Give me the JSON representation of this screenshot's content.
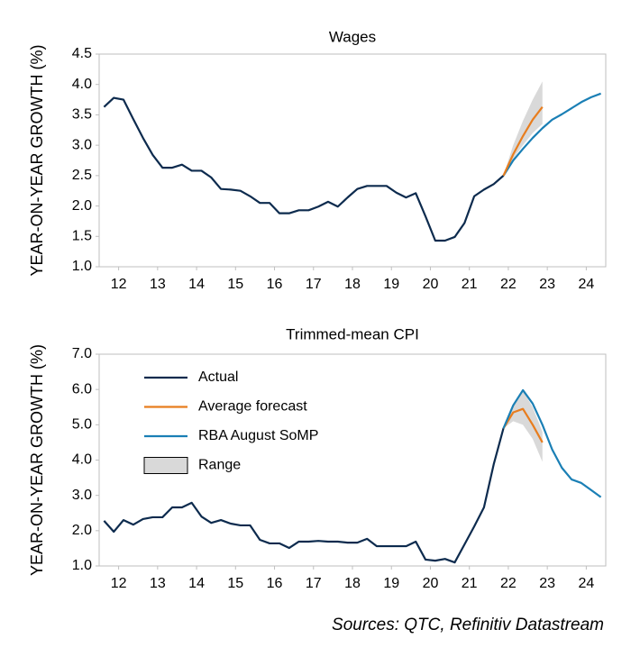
{
  "chart_data": [
    {
      "type": "line",
      "title": "Wages",
      "ylabel": "YEAR-ON-YEAR GROWTH (%)",
      "xlim": [
        2011.5,
        2024.5
      ],
      "xticks": [
        {
          "value": 2012,
          "label": "12"
        },
        {
          "value": 2013,
          "label": "13"
        },
        {
          "value": 2014,
          "label": "14"
        },
        {
          "value": 2015,
          "label": "15"
        },
        {
          "value": 2016,
          "label": "16"
        },
        {
          "value": 2017,
          "label": "17"
        },
        {
          "value": 2018,
          "label": "18"
        },
        {
          "value": 2019,
          "label": "19"
        },
        {
          "value": 2020,
          "label": "20"
        },
        {
          "value": 2021,
          "label": "21"
        },
        {
          "value": 2022,
          "label": "22"
        },
        {
          "value": 2023,
          "label": "23"
        },
        {
          "value": 2024,
          "label": "24"
        }
      ],
      "ylim": [
        1.0,
        4.5
      ],
      "yticks": [
        {
          "value": 1.0,
          "label": "1.0"
        },
        1.5,
        {
          "value": 2.0,
          "label": "2.0"
        },
        2.5,
        {
          "value": 3.0,
          "label": "3.0"
        },
        3.5,
        {
          "value": 4.0,
          "label": "4.0"
        },
        4.5
      ],
      "legend": false,
      "range": {
        "color": "#d9d9d9",
        "x": [
          2021.875,
          2022.125,
          2022.375,
          2022.625,
          2022.875
        ],
        "low": [
          2.5,
          2.78,
          3.0,
          3.2,
          3.35
        ],
        "high": [
          2.5,
          3.0,
          3.4,
          3.75,
          4.05
        ]
      },
      "series": [
        {
          "color": "#0d2b4e",
          "x": [
            2011.625,
            2011.875,
            2012.125,
            2012.375,
            2012.625,
            2012.875,
            2013.125,
            2013.375,
            2013.625,
            2013.875,
            2014.125,
            2014.375,
            2014.625,
            2014.875,
            2015.125,
            2015.375,
            2015.625,
            2015.875,
            2016.125,
            2016.375,
            2016.625,
            2016.875,
            2017.125,
            2017.375,
            2017.625,
            2017.875,
            2018.125,
            2018.375,
            2018.625,
            2018.875,
            2019.125,
            2019.375,
            2019.625,
            2019.875,
            2020.125,
            2020.375,
            2020.625,
            2020.875,
            2021.125,
            2021.375,
            2021.625,
            2021.875
          ],
          "values": [
            3.63,
            3.78,
            3.75,
            3.43,
            3.12,
            2.84,
            2.63,
            2.63,
            2.68,
            2.58,
            2.58,
            2.47,
            2.28,
            2.27,
            2.25,
            2.16,
            2.05,
            2.05,
            1.88,
            1.88,
            1.93,
            1.93,
            1.99,
            2.07,
            1.99,
            2.14,
            2.28,
            2.33,
            2.33,
            2.33,
            2.22,
            2.14,
            2.21,
            1.83,
            1.43,
            1.43,
            1.49,
            1.72,
            2.16,
            2.27,
            2.36,
            2.5
          ]
        },
        {
          "color": "#1a7fb5",
          "x": [
            2021.875,
            2022.125,
            2022.375,
            2022.625,
            2022.875,
            2023.125,
            2023.375,
            2023.625,
            2023.875,
            2024.125,
            2024.375
          ],
          "values": [
            2.5,
            2.75,
            2.94,
            3.12,
            3.28,
            3.42,
            3.51,
            3.61,
            3.71,
            3.79,
            3.85
          ]
        },
        {
          "color": "#e87d1e",
          "x": [
            2021.875,
            2022.125,
            2022.375,
            2022.625,
            2022.875
          ],
          "values": [
            2.5,
            2.85,
            3.15,
            3.42,
            3.63
          ]
        }
      ]
    },
    {
      "type": "line",
      "title": "Trimmed-mean CPI",
      "ylabel": "YEAR-ON-YEAR GROWTH (%)",
      "xlim": [
        2011.5,
        2024.5
      ],
      "xticks": [
        {
          "value": 2012,
          "label": "12"
        },
        {
          "value": 2013,
          "label": "13"
        },
        {
          "value": 2014,
          "label": "14"
        },
        {
          "value": 2015,
          "label": "15"
        },
        {
          "value": 2016,
          "label": "16"
        },
        {
          "value": 2017,
          "label": "17"
        },
        {
          "value": 2018,
          "label": "18"
        },
        {
          "value": 2019,
          "label": "19"
        },
        {
          "value": 2020,
          "label": "20"
        },
        {
          "value": 2021,
          "label": "21"
        },
        {
          "value": 2022,
          "label": "22"
        },
        {
          "value": 2023,
          "label": "23"
        },
        {
          "value": 2024,
          "label": "24"
        }
      ],
      "ylim": [
        1.0,
        7.0
      ],
      "yticks": [
        {
          "value": 1.0,
          "label": "1.0"
        },
        {
          "value": 2.0,
          "label": "2.0"
        },
        {
          "value": 3.0,
          "label": "3.0"
        },
        {
          "value": 4.0,
          "label": "4.0"
        },
        {
          "value": 5.0,
          "label": "5.0"
        },
        {
          "value": 6.0,
          "label": "6.0"
        },
        {
          "value": 7.0,
          "label": "7.0"
        }
      ],
      "legend": "upper left",
      "range": {
        "name": "Range",
        "color": "#d9d9d9",
        "x": [
          2021.875,
          2022.125,
          2022.375,
          2022.625,
          2022.875
        ],
        "low": [
          4.9,
          5.1,
          5.0,
          4.6,
          3.95
        ],
        "high": [
          4.9,
          5.6,
          5.95,
          5.5,
          4.8
        ]
      },
      "series": [
        {
          "name": "Actual",
          "color": "#0d2b4e",
          "x": [
            2011.625,
            2011.875,
            2012.125,
            2012.375,
            2012.625,
            2012.875,
            2013.125,
            2013.375,
            2013.625,
            2013.875,
            2014.125,
            2014.375,
            2014.625,
            2014.875,
            2015.125,
            2015.375,
            2015.625,
            2015.875,
            2016.125,
            2016.375,
            2016.625,
            2016.875,
            2017.125,
            2017.375,
            2017.625,
            2017.875,
            2018.125,
            2018.375,
            2018.625,
            2018.875,
            2019.125,
            2019.375,
            2019.625,
            2019.875,
            2020.125,
            2020.375,
            2020.625,
            2020.875,
            2021.125,
            2021.375,
            2021.625,
            2021.875
          ],
          "values": [
            2.28,
            1.97,
            2.3,
            2.17,
            2.33,
            2.38,
            2.38,
            2.66,
            2.66,
            2.79,
            2.4,
            2.22,
            2.3,
            2.2,
            2.15,
            2.15,
            1.74,
            1.64,
            1.64,
            1.51,
            1.69,
            1.69,
            1.71,
            1.69,
            1.69,
            1.66,
            1.66,
            1.77,
            1.56,
            1.56,
            1.56,
            1.56,
            1.69,
            1.18,
            1.15,
            1.2,
            1.1,
            1.61,
            2.12,
            2.66,
            3.88,
            4.9
          ]
        },
        {
          "name": "Average forecast",
          "color": "#e87d1e",
          "x": [
            2021.875,
            2022.125,
            2022.375,
            2022.625,
            2022.875
          ],
          "values": [
            4.9,
            5.35,
            5.45,
            5.0,
            4.5
          ]
        },
        {
          "name": "RBA August SoMP",
          "color": "#1a7fb5",
          "x": [
            2021.875,
            2022.125,
            2022.375,
            2022.625,
            2022.875,
            2023.125,
            2023.375,
            2023.625,
            2023.875,
            2024.125,
            2024.375
          ],
          "values": [
            4.9,
            5.55,
            5.98,
            5.6,
            5.0,
            4.3,
            3.78,
            3.45,
            3.35,
            3.15,
            2.95
          ]
        }
      ]
    }
  ],
  "source": "Sources: QTC, Refinitiv Datastream"
}
